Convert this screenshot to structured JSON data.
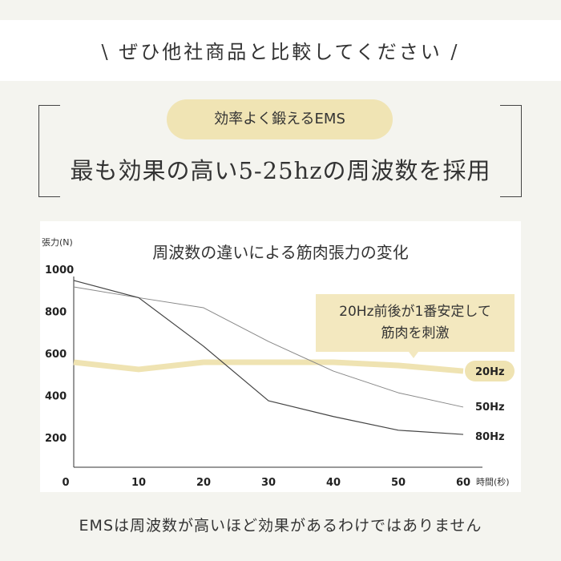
{
  "header": {
    "tagline": "\\ ぜひ他社商品と比較してください /"
  },
  "hero": {
    "badge": "効率よく鍛えるEMS",
    "headline": "最も効果の高い5-25hzの周波数を採用"
  },
  "footer": {
    "note": "EMSは周波数が高いほど効果があるわけではありません"
  },
  "colors": {
    "background": "#f4f4ef",
    "accent": "#f0e4b4",
    "line20": "#efe3b2",
    "line50": "#888888",
    "line80": "#444444"
  },
  "chart_data": {
    "type": "line",
    "title": "周波数の違いによる筋肉張力の変化",
    "ylabel": "張力(N)",
    "xlabel": "時間(秒)",
    "x": [
      0,
      10,
      20,
      30,
      40,
      50,
      60
    ],
    "xticks": [
      "0",
      "10",
      "20",
      "30",
      "40",
      "50",
      "60"
    ],
    "yticks": [
      "1000",
      "800",
      "600",
      "400",
      "200"
    ],
    "ytick_values": [
      1000,
      800,
      600,
      400,
      200
    ],
    "xlim": [
      0,
      60
    ],
    "ylim": [
      60,
      1000
    ],
    "grid": false,
    "series": [
      {
        "name": "20Hz",
        "values": [
          558,
          524,
          558,
          558,
          558,
          543,
          516
        ],
        "color": "#efe3b2"
      },
      {
        "name": "50Hz",
        "values": [
          916,
          865,
          817,
          657,
          516,
          413,
          345
        ],
        "color": "#888888"
      },
      {
        "name": "80Hz",
        "values": [
          947,
          865,
          634,
          375,
          300,
          235,
          215
        ],
        "color": "#444444"
      }
    ],
    "annotation": {
      "line1": "20Hz前後が1番安定して",
      "line2": "筋肉を刺激"
    }
  }
}
